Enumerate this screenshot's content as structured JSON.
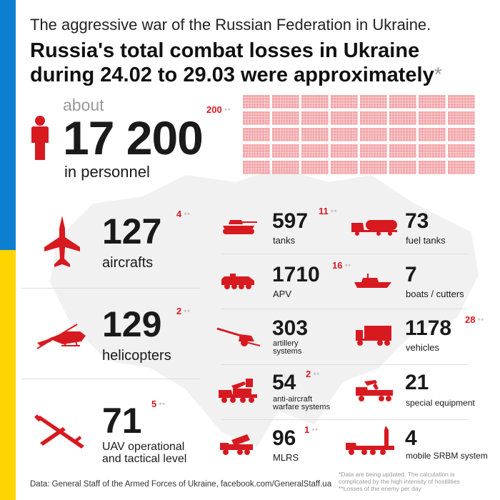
{
  "colors": {
    "blue": "#0d7fd1",
    "yellow": "#ffd500",
    "accent": "#d71920"
  },
  "header": {
    "subtitle": "The aggressive war of the Russian Federation in Ukraine.",
    "title_line1": "Russia's total combat losses in Ukraine",
    "title_line2": "during 24.02 to 29.03 were approximately",
    "title_asterisk": "*"
  },
  "personnel": {
    "prefix": "about",
    "value": "17 200",
    "label": "in personnel",
    "per_day": "200",
    "icon": "person-icon",
    "grid_blocks": 86
  },
  "left_items": [
    {
      "key": "aircrafts",
      "value": "127",
      "label": "aircrafts",
      "per_day": "4",
      "icon": "aircraft-icon"
    },
    {
      "key": "helicopters",
      "value": "129",
      "label": "helicopters",
      "per_day": "2",
      "icon": "helicopter-icon"
    },
    {
      "key": "uav",
      "value": "71",
      "label_line1": "UAV operational",
      "label_line2": "and tactical level",
      "per_day": "5",
      "icon": "uav-icon"
    }
  ],
  "mid_items": [
    {
      "key": "tanks",
      "value": "597",
      "label": "tanks",
      "per_day": "11",
      "icon": "tank-icon"
    },
    {
      "key": "apv",
      "value": "1710",
      "label": "APV",
      "per_day": "16",
      "icon": "apv-icon"
    },
    {
      "key": "artillery",
      "value": "303",
      "label_line1": "artillery",
      "label_line2": "systems",
      "per_day": "",
      "icon": "artillery-icon"
    },
    {
      "key": "antiaircraft",
      "value": "54",
      "label_line1": "anti-aircraft",
      "label_line2": "warfare systems",
      "per_day": "2",
      "icon": "anti-aircraft-icon"
    },
    {
      "key": "mlrs",
      "value": "96",
      "label": "MLRS",
      "per_day": "1",
      "icon": "mlrs-icon"
    }
  ],
  "right_items": [
    {
      "key": "fuel",
      "value": "73",
      "label": "fuel tanks",
      "per_day": "",
      "icon": "fuel-tank-icon"
    },
    {
      "key": "boats",
      "value": "7",
      "label": "boats / cutters",
      "per_day": "",
      "icon": "boat-icon"
    },
    {
      "key": "vehicles",
      "value": "1178",
      "label": "vehicles",
      "per_day": "28",
      "icon": "truck-icon"
    },
    {
      "key": "special",
      "value": "21",
      "label": "special equipment",
      "per_day": "",
      "icon": "special-equipment-icon"
    },
    {
      "key": "srbm",
      "value": "4",
      "label": "mobile SRBM system",
      "per_day": "",
      "icon": "srbm-icon"
    }
  ],
  "footer": {
    "source": "Data: General Staff of the Armed Forces of Ukraine, facebook.com/GeneralStaff.ua",
    "note1": "*Data are being updated. The calculation is complicated by the high intensity of hostilities",
    "note2": "**Losses of the enemy per day"
  }
}
